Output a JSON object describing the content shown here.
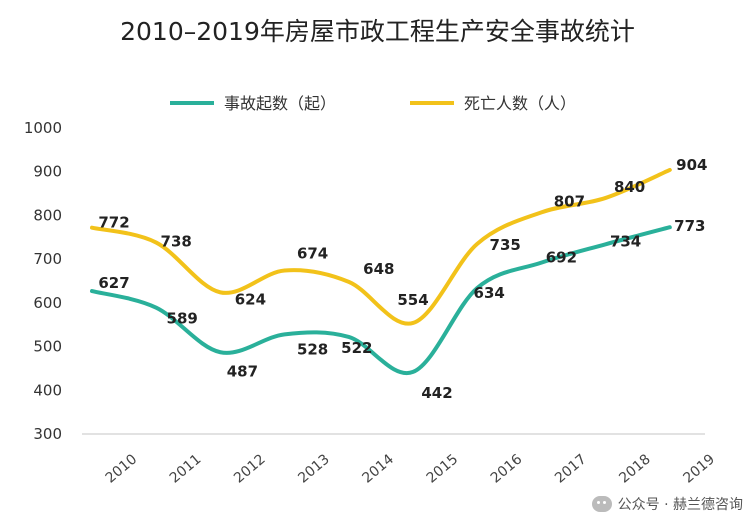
{
  "chart_data": {
    "type": "line",
    "title": "2010–2019年房屋市政工程生产安全事故统计",
    "categories": [
      "2010",
      "2011",
      "2012",
      "2013",
      "2014",
      "2015",
      "2016",
      "2017",
      "2018",
      "2019"
    ],
    "series": [
      {
        "name": "事故起数（起）",
        "color": "#2ab09a",
        "values": [
          627,
          589,
          487,
          528,
          522,
          442,
          634,
          692,
          734,
          773
        ]
      },
      {
        "name": "死亡人数（人）",
        "color": "#f2c21a",
        "values": [
          772,
          738,
          624,
          674,
          648,
          554,
          735,
          807,
          840,
          904
        ]
      }
    ],
    "ylim": [
      300,
      1000
    ],
    "yticks": [
      300,
      400,
      500,
      600,
      700,
      800,
      900,
      1000
    ],
    "legend_position": "top",
    "grid": false
  },
  "watermark": "公众号 · 赫兰德咨询"
}
